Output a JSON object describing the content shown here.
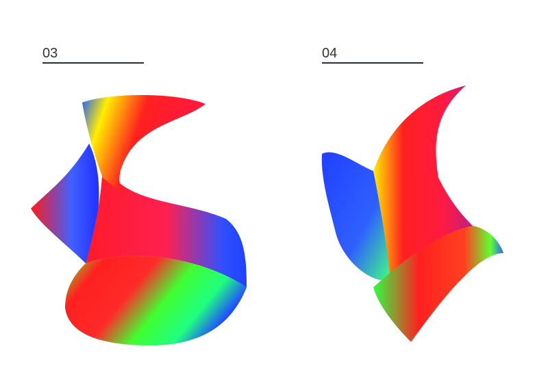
{
  "panels": [
    {
      "label": "03"
    },
    {
      "label": "04"
    }
  ]
}
